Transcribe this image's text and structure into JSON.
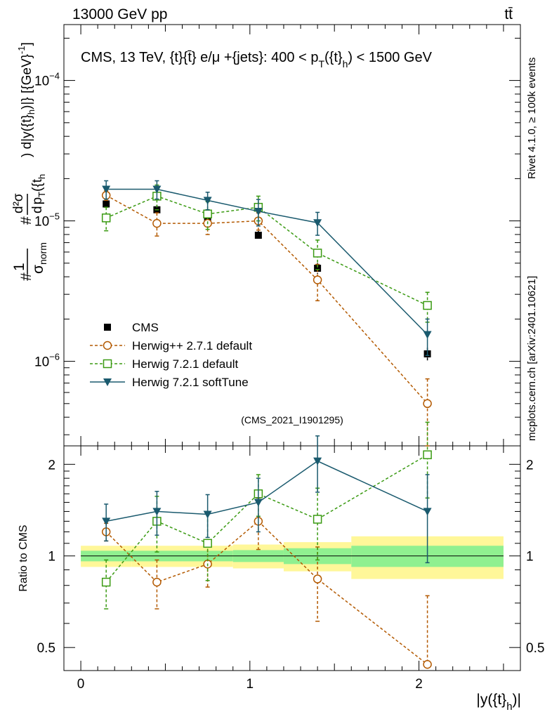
{
  "header": {
    "left": "13000 GeV pp",
    "right": "tt̄"
  },
  "side_labels": {
    "rivet": "Rivet 4.1.0, ≥ 100k events",
    "mcplots": "mcplots.cern.ch [arXiv:2401.10621]"
  },
  "chart_data": {
    "type": "scatter",
    "title": "CMS, 13 TeV, {t}{t̄} e/μ +{jets}: 400 <  p_T({t}_h) < 1500 GeV",
    "title_parts": [
      "CMS, 13 TeV, {t}{t̄} e/μ +{jets}: 400 <  p",
      "T",
      "({t}",
      "h",
      ") < 1500 GeV"
    ],
    "analysis_tag": "(CMS_2021_I1901295)",
    "xlabel": "|y({t}_h)|",
    "xlabel_parts": [
      "|y({t}",
      "h",
      ")|"
    ],
    "ylabel": "#1/σ_norm # d²σ / d p_T({t}_h) d|y({t}_h)| [{GeV}⁻¹]",
    "ylabel_parts": {
      "hash1": "#",
      "one": "1",
      "sigma": "σ",
      "norm": "norm",
      "hash2": "#",
      "d2sigma": "d²σ",
      "d": "d",
      "pT": "p",
      "T": "T",
      "th": "({t",
      "h": "h",
      "tail": ") d|y({t}",
      "h2": "h",
      "units": ")|} [{GeV}",
      "exp": "-1",
      "close": "]"
    },
    "ratio_ylabel": "Ratio to CMS",
    "xlim": [
      -0.1,
      2.6
    ],
    "ylim": [
      2.5e-07,
      0.00025
    ],
    "ratio_ylim": [
      0.42,
      2.3
    ],
    "x_ticks": [
      0,
      1,
      2
    ],
    "x_tick_labels": [
      "0",
      "1",
      "2"
    ],
    "y_ticks": [
      1e-06,
      1e-05,
      0.0001
    ],
    "y_tick_labels": [
      {
        "base": "10",
        "exp": "−6"
      },
      {
        "base": "10",
        "exp": "−5"
      },
      {
        "base": "10",
        "exp": "−4"
      }
    ],
    "ratio_ticks": [
      0.5,
      1,
      2
    ],
    "ratio_tick_labels": [
      "0.5",
      "1",
      "2"
    ],
    "bins": [
      {
        "lo": 0.0,
        "hi": 0.3
      },
      {
        "lo": 0.3,
        "hi": 0.6
      },
      {
        "lo": 0.6,
        "hi": 0.9
      },
      {
        "lo": 0.9,
        "hi": 1.2
      },
      {
        "lo": 1.2,
        "hi": 1.6
      },
      {
        "lo": 1.6,
        "hi": 2.5
      }
    ],
    "band_inner": [
      0.04,
      0.04,
      0.04,
      0.045,
      0.06,
      0.08
    ],
    "band_outer": [
      0.08,
      0.08,
      0.08,
      0.09,
      0.11,
      0.16
    ],
    "series": [
      {
        "name": "CMS",
        "style": "data",
        "color": "#000000",
        "x": [
          0.15,
          0.45,
          0.75,
          1.05,
          1.4,
          2.05
        ],
        "y": [
          1.32e-05,
          1.2e-05,
          1.02e-05,
          7.9e-06,
          4.6e-06,
          1.13e-06
        ],
        "yerr": [
          1e-06,
          1e-06,
          8e-07,
          6e-07,
          4e-07,
          1.2e-07
        ],
        "ratio": [
          1,
          1,
          1,
          1,
          1,
          1
        ]
      },
      {
        "name": "Herwig++ 2.7.1 default",
        "style": "circle",
        "color": "#b35900",
        "x": [
          0.15,
          0.45,
          0.75,
          1.05,
          1.4,
          2.05
        ],
        "y": [
          1.52e-05,
          9.6e-06,
          9.6e-06,
          1e-05,
          3.8e-06,
          5e-07
        ],
        "yerr": [
          1.2e-06,
          1.8e-06,
          1.6e-06,
          1.4e-06,
          1.1e-06,
          2.5e-07
        ],
        "ratio": [
          1.2,
          0.82,
          0.94,
          1.3,
          0.84,
          0.44
        ],
        "ratio_err": [
          0.08,
          0.15,
          0.15,
          0.25,
          0.23,
          0.3
        ]
      },
      {
        "name": "Herwig 7.2.1 default",
        "style": "square",
        "color": "#3a9a12",
        "x": [
          0.15,
          0.45,
          0.75,
          1.05,
          1.4,
          2.05
        ],
        "y": [
          1.05e-05,
          1.5e-05,
          1.12e-05,
          1.25e-05,
          5.9e-06,
          2.5e-06
        ],
        "yerr": [
          2e-06,
          3e-06,
          2.5e-06,
          2.5e-06,
          1.4e-06,
          6e-07
        ],
        "ratio": [
          0.82,
          1.3,
          1.1,
          1.6,
          1.32,
          2.15
        ],
        "ratio_err": [
          0.15,
          0.27,
          0.27,
          0.25,
          0.35,
          0.6
        ]
      },
      {
        "name": "Herwig 7.2.1 softTune",
        "style": "triangle",
        "color": "#1a5a6e",
        "x": [
          0.15,
          0.45,
          0.75,
          1.05,
          1.4,
          2.05
        ],
        "y": [
          1.68e-05,
          1.68e-05,
          1.4e-05,
          1.17e-05,
          9.7e-06,
          1.55e-06
        ],
        "yerr": [
          2.5e-06,
          2.5e-06,
          2e-06,
          2.5e-06,
          1.8e-06,
          4.5e-07
        ],
        "ratio": [
          1.3,
          1.4,
          1.37,
          1.5,
          2.05,
          1.4
        ],
        "ratio_err": [
          0.18,
          0.23,
          0.22,
          0.3,
          0.43,
          0.45
        ]
      }
    ],
    "band_colors": {
      "inner": "#90f090",
      "outer": "#fff799"
    }
  }
}
